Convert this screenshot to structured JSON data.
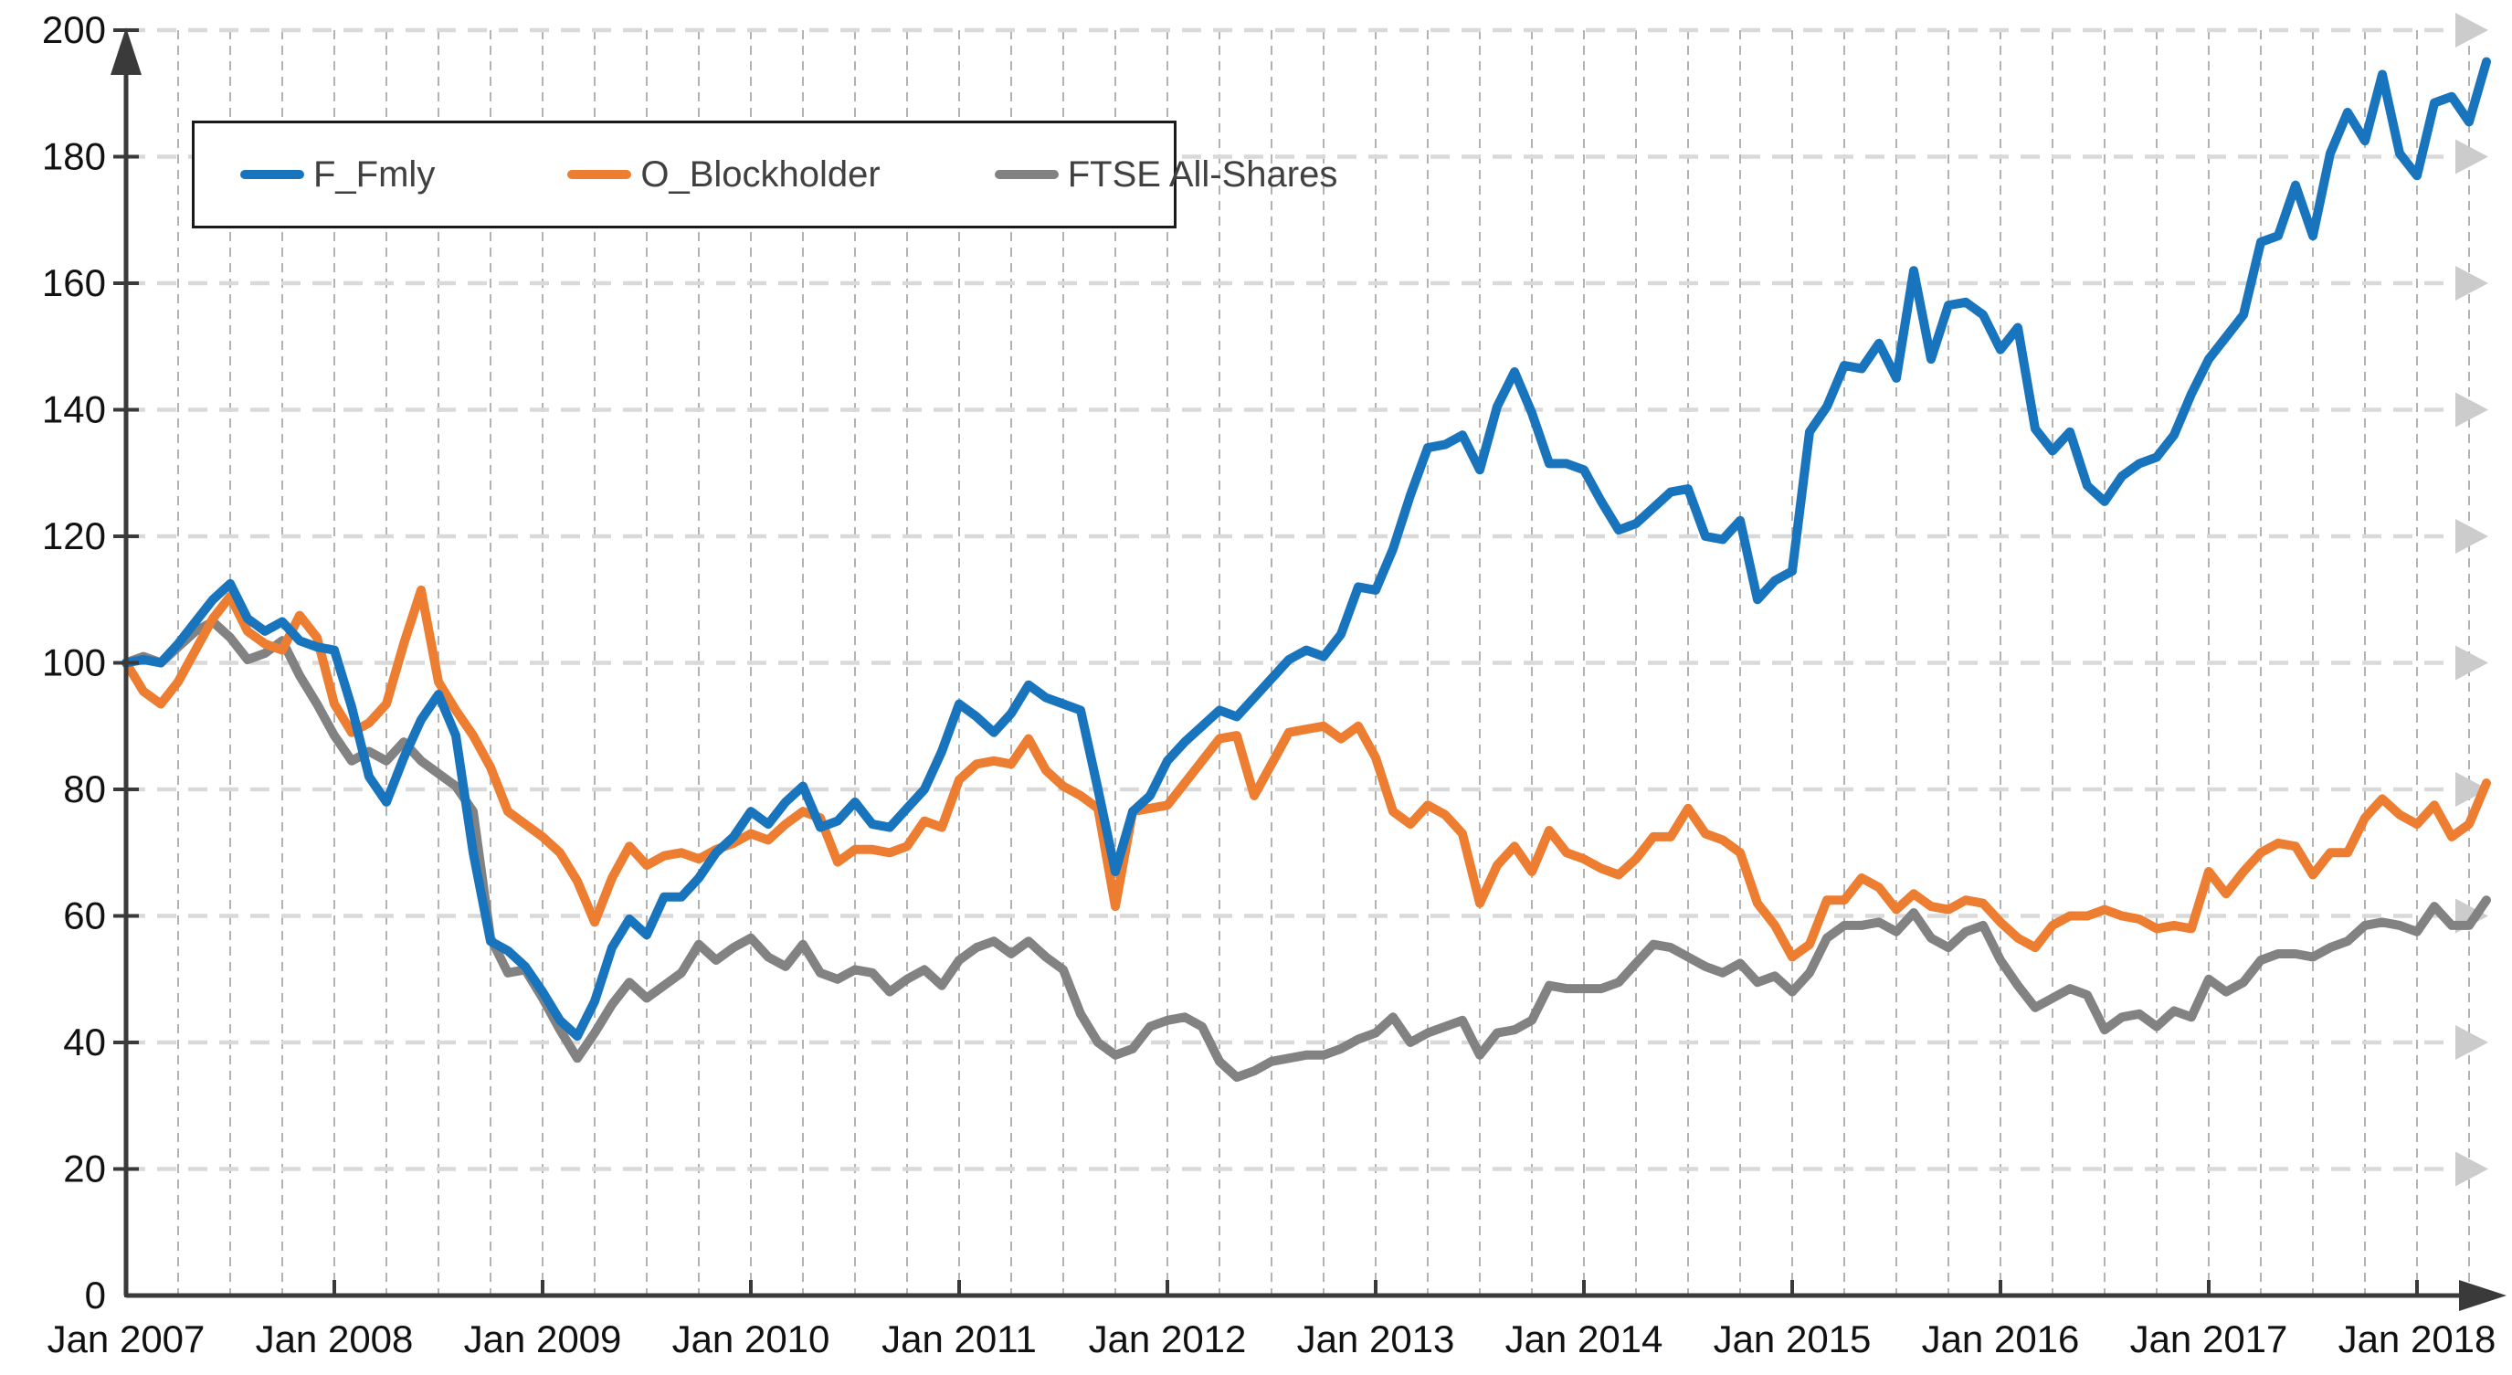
{
  "chart_data": {
    "type": "line",
    "title": "",
    "xlabel": "",
    "ylabel": "",
    "ylim": [
      0,
      200
    ],
    "y_tick_step": 20,
    "y_tick_labels": [
      "0",
      "20",
      "40",
      "60",
      "80",
      "100",
      "120",
      "140",
      "160",
      "180",
      "200"
    ],
    "x_tick_labels": [
      "Jan 2007",
      "Jan 2008",
      "Jan 2009",
      "Jan 2010",
      "Jan 2011",
      "Jan 2012",
      "Jan 2013",
      "Jan 2014",
      "Jan 2015",
      "Jan 2016",
      "Jan 2017",
      "Jan 2018"
    ],
    "x_tick_month_positions": [
      0,
      12,
      24,
      36,
      48,
      60,
      72,
      84,
      96,
      108,
      120,
      132
    ],
    "x_start_month": "2007-01",
    "x_end_month": "2018-05",
    "months_total": 137,
    "quarter_gridlines": true,
    "grid_on": true,
    "legend_position": "top-left-inside",
    "series": [
      {
        "name": "F_Fmly",
        "color": "#1874bd",
        "values": [
          100,
          100.5,
          100,
          103,
          106.5,
          110,
          112.5,
          107,
          105,
          106.5,
          103.5,
          102.5,
          102,
          93,
          82,
          78,
          85,
          91,
          95,
          88.5,
          70,
          56,
          54.5,
          52,
          48,
          43.5,
          41,
          46.5,
          55,
          59.5,
          57,
          63,
          63,
          66,
          70,
          72.5,
          76.5,
          74.5,
          78,
          80.5,
          74,
          75,
          78,
          74.5,
          74,
          77,
          80,
          86,
          93.5,
          91.5,
          89,
          92,
          96.5,
          94.5,
          93.5,
          92.5,
          80,
          67,
          76.5,
          79,
          84.5,
          87.5,
          90,
          92.5,
          91.5,
          94.5,
          97.5,
          100.5,
          102,
          101,
          104.5,
          112,
          111.5,
          118,
          126.5,
          134,
          134.5,
          136,
          130.5,
          140.5,
          146,
          139.5,
          131.5,
          131.5,
          130.5,
          125.5,
          121,
          122,
          124.5,
          127,
          127.5,
          120,
          119.5,
          122.5,
          110,
          113,
          114.5,
          136.5,
          140.5,
          147,
          146.5,
          150.5,
          145,
          162,
          148,
          156.5,
          157,
          155,
          149.5,
          153,
          137,
          133.5,
          136.5,
          128,
          125.5,
          129.5,
          131.5,
          132.5,
          136,
          142.5,
          148,
          151.5,
          155,
          166.5,
          167.5,
          175.5,
          167.5,
          180.5,
          187,
          182.5,
          193,
          180.5,
          177,
          188.5,
          189.5,
          185.5,
          195
        ]
      },
      {
        "name": "O_Blockholder",
        "color": "#ed7d31",
        "values": [
          100,
          95.5,
          93.5,
          97,
          102,
          107,
          110.5,
          105,
          103,
          102,
          107.5,
          104,
          93.5,
          89,
          90.5,
          93.5,
          103,
          111.5,
          97,
          92.5,
          88.5,
          83.5,
          76.5,
          74.5,
          72.5,
          70,
          65.5,
          59,
          66,
          71,
          68,
          69.5,
          70,
          69,
          70.5,
          71.5,
          73,
          72,
          74.5,
          76.5,
          75.5,
          68.5,
          70.5,
          70.5,
          70,
          71,
          75,
          74,
          81.5,
          84,
          84.5,
          84,
          88,
          83,
          80.5,
          79,
          77,
          61.5,
          76.5,
          77,
          77.5,
          81,
          84.5,
          88,
          88.5,
          79,
          84,
          89,
          89.5,
          90,
          88,
          90,
          85,
          76.5,
          74.5,
          77.5,
          76,
          73,
          62,
          68,
          71,
          67,
          73.5,
          70,
          69,
          67.5,
          66.5,
          69,
          72.5,
          72.5,
          77,
          73,
          72,
          70,
          62,
          58.5,
          53.5,
          55.5,
          62.5,
          62.5,
          66,
          64.5,
          61,
          63.5,
          61.5,
          61,
          62.5,
          62,
          59,
          56.5,
          55,
          58.5,
          60,
          60,
          61,
          60,
          59.5,
          58,
          58.5,
          58,
          67,
          63.5,
          67,
          70,
          71.5,
          71,
          66.5,
          70,
          70,
          75.5,
          78.5,
          76,
          74.5,
          77.5,
          72.5,
          74.5,
          81
        ]
      },
      {
        "name": "FTSE All-Shares",
        "color": "#828282",
        "values": [
          100,
          101,
          100,
          102.5,
          105,
          106.5,
          104,
          100.5,
          101.5,
          103.5,
          98,
          93.5,
          88.5,
          84.5,
          86,
          84.5,
          87.5,
          84.5,
          82.5,
          80.5,
          76.5,
          56.5,
          51,
          51.5,
          47,
          42,
          37.5,
          41.5,
          46,
          49.5,
          47,
          49,
          51,
          55.5,
          53,
          55,
          56.5,
          53.5,
          52,
          55.5,
          51,
          50,
          51.5,
          51,
          48,
          50,
          51.5,
          49,
          53,
          55,
          56,
          54,
          56,
          53.5,
          51.5,
          44.5,
          40,
          38,
          39,
          42.5,
          43.5,
          44,
          42.5,
          37,
          34.5,
          35.5,
          37,
          37.5,
          38,
          38,
          39,
          40.5,
          41.5,
          44,
          40,
          41.5,
          42.5,
          43.5,
          38,
          41.5,
          42,
          43.5,
          49,
          48.5,
          48.5,
          48.5,
          49.5,
          52.5,
          55.5,
          55,
          53.5,
          52,
          51,
          52.5,
          49.5,
          50.5,
          48,
          51,
          56.5,
          58.5,
          58.5,
          59,
          57.5,
          60.5,
          56.5,
          55,
          57.5,
          58.5,
          53,
          49,
          45.5,
          47,
          48.5,
          47.5,
          42,
          44,
          44.5,
          42.5,
          45,
          44,
          50,
          48,
          49.5,
          53,
          54,
          54,
          53.5,
          55,
          56,
          58.5,
          59,
          58.5,
          57.5,
          61.5,
          58.5,
          58.5,
          62.5
        ]
      }
    ],
    "style": {
      "axis_color": "#3a3a3a",
      "h_grid_color": "#d9d9d9",
      "v_grid_color": "#ababab",
      "arrowhead_color": "#cccccc",
      "tick_label_color": "#111111",
      "legend_text_color": "#404040",
      "background": "#ffffff"
    }
  }
}
